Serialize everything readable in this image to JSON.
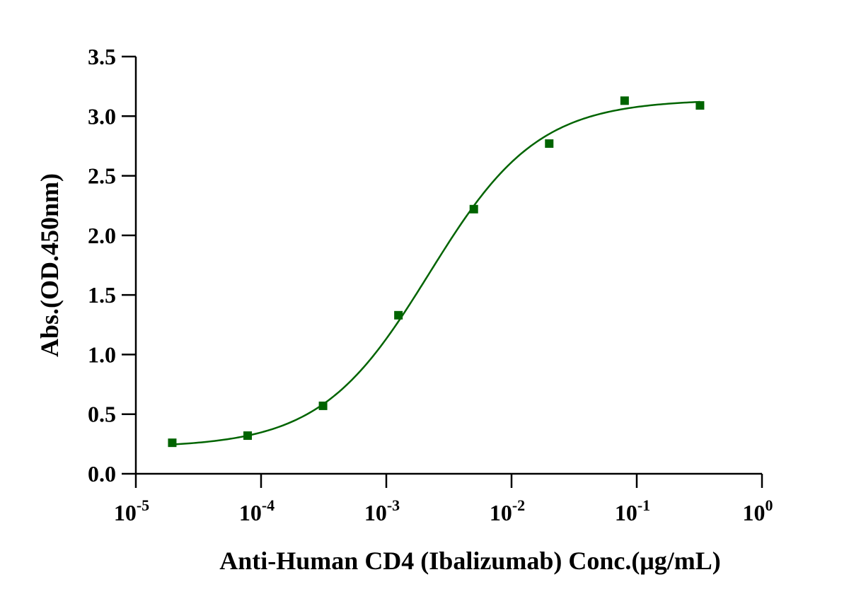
{
  "chart_data": {
    "type": "scatter",
    "xlabel": "Anti-Human CD4 (Ibalizumab)  Conc.(μg/mL)",
    "ylabel": "Abs.(OD.450nm)",
    "x_scale": "log",
    "xlim": [
      1e-05,
      1
    ],
    "ylim": [
      0,
      3.5
    ],
    "grid": false,
    "x_ticks": [
      {
        "value": 1e-05,
        "base": "10",
        "exp": "-5"
      },
      {
        "value": 0.0001,
        "base": "10",
        "exp": "-4"
      },
      {
        "value": 0.001,
        "base": "10",
        "exp": "-3"
      },
      {
        "value": 0.01,
        "base": "10",
        "exp": "-2"
      },
      {
        "value": 0.1,
        "base": "10",
        "exp": "-1"
      },
      {
        "value": 1,
        "base": "10",
        "exp": "0"
      }
    ],
    "y_ticks": [
      "0.0",
      "0.5",
      "1.0",
      "1.5",
      "2.0",
      "2.5",
      "3.0",
      "3.5"
    ],
    "color": "#006400",
    "series": [
      {
        "x": [
          1.953e-05,
          7.813e-05,
          0.0003125,
          0.00125,
          0.005,
          0.02,
          0.08,
          0.32
        ],
        "y": [
          0.26,
          0.32,
          0.57,
          1.33,
          2.22,
          2.77,
          3.13,
          3.09
        ]
      }
    ],
    "fit": {
      "model": "4PL",
      "bottom": 0.22,
      "top": 3.14,
      "ec50": 0.0022,
      "hill": 1.0
    }
  }
}
